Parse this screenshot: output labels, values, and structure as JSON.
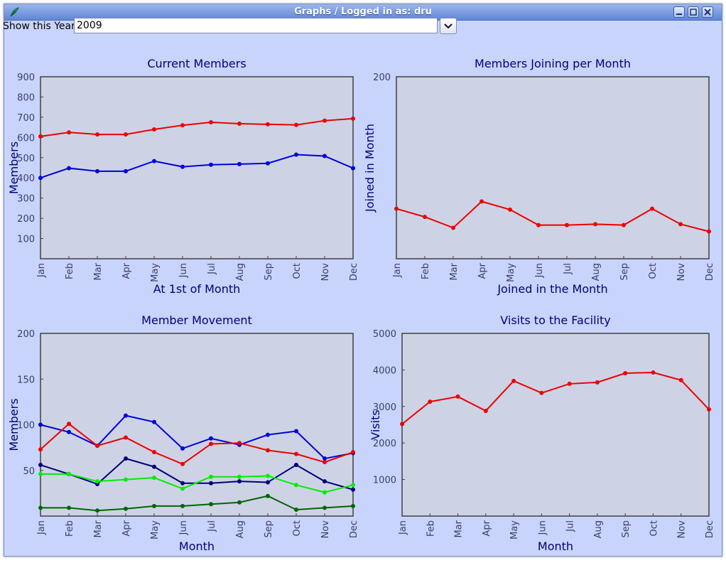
{
  "window": {
    "title": "Graphs / Logged in as: dru"
  },
  "toolbar": {
    "year_label": "Show this Year",
    "year_value": "2009"
  },
  "colors": {
    "plot_bg": "#cdd3e5",
    "text": "#00007a",
    "tick_text": "#3c3c6c",
    "red": "#ee0000",
    "blue": "#0000dd",
    "navy": "#00007a",
    "lime": "#00ee00",
    "green": "#006600"
  },
  "chart_data": [
    {
      "id": "current-members",
      "type": "line",
      "title": "Current Members",
      "xlabel": "At 1st of Month",
      "ylabel": "Members",
      "categories": [
        "Jan",
        "Feb",
        "Mar",
        "Apr",
        "May",
        "Jun",
        "Jul",
        "Aug",
        "Sep",
        "Oct",
        "Nov",
        "Dec"
      ],
      "ylim": [
        0,
        900
      ],
      "yticks": [
        100,
        200,
        300,
        400,
        500,
        600,
        700,
        800,
        900
      ],
      "series": [
        {
          "color": "red",
          "values": [
            605,
            625,
            615,
            615,
            640,
            660,
            675,
            668,
            665,
            662,
            683,
            693
          ]
        },
        {
          "color": "blue",
          "values": [
            400,
            448,
            433,
            433,
            483,
            455,
            465,
            468,
            472,
            515,
            508,
            448
          ]
        }
      ]
    },
    {
      "id": "members-joining",
      "type": "line",
      "title": "Members Joining per Month",
      "xlabel": "Joined in the Month",
      "ylabel": "Joined in Month",
      "categories": [
        "Jan",
        "Feb",
        "Mar",
        "Apr",
        "May",
        "Jun",
        "Jul",
        "Aug",
        "Sep",
        "Oct",
        "Nov",
        "Dec"
      ],
      "ylim": [
        0,
        200
      ],
      "yticks": [
        200
      ],
      "series": [
        {
          "color": "red",
          "values": [
            55,
            46,
            34,
            63,
            54,
            37,
            37,
            38,
            37,
            55,
            38,
            30
          ]
        }
      ]
    },
    {
      "id": "member-movement",
      "type": "line",
      "title": "Member Movement",
      "xlabel": "Month",
      "ylabel": "Members",
      "categories": [
        "Jan",
        "Feb",
        "Mar",
        "Apr",
        "May",
        "Jun",
        "Jul",
        "Aug",
        "Sep",
        "Oct",
        "Nov",
        "Dec"
      ],
      "ylim": [
        0,
        200
      ],
      "yticks": [
        50,
        100,
        150,
        200
      ],
      "series": [
        {
          "color": "blue",
          "values": [
            100,
            92,
            77,
            110,
            103,
            74,
            85,
            78,
            89,
            93,
            63,
            69
          ]
        },
        {
          "color": "red",
          "values": [
            73,
            101,
            77,
            86,
            70,
            57,
            79,
            80,
            72,
            68,
            59,
            70
          ]
        },
        {
          "color": "navy",
          "values": [
            56,
            46,
            35,
            63,
            54,
            36,
            36,
            38,
            37,
            56,
            38,
            29
          ]
        },
        {
          "color": "lime",
          "values": [
            46,
            46,
            38,
            40,
            42,
            30,
            43,
            43,
            44,
            34,
            26,
            34
          ]
        },
        {
          "color": "green",
          "values": [
            9,
            9,
            6,
            8,
            11,
            11,
            13,
            15,
            22,
            7,
            9,
            11
          ]
        }
      ]
    },
    {
      "id": "visits",
      "type": "line",
      "title": "Visits to the Facility",
      "xlabel": "Month",
      "ylabel": "Visits",
      "categories": [
        "Jan",
        "Feb",
        "Mar",
        "Apr",
        "May",
        "Jun",
        "Jul",
        "Aug",
        "Sep",
        "Oct",
        "Nov",
        "Dec"
      ],
      "ylim": [
        0,
        5000
      ],
      "yticks": [
        1000,
        2000,
        3000,
        4000,
        5000
      ],
      "series": [
        {
          "color": "red",
          "values": [
            2520,
            3130,
            3270,
            2880,
            3700,
            3370,
            3620,
            3660,
            3910,
            3930,
            3720,
            2920
          ]
        }
      ]
    }
  ]
}
